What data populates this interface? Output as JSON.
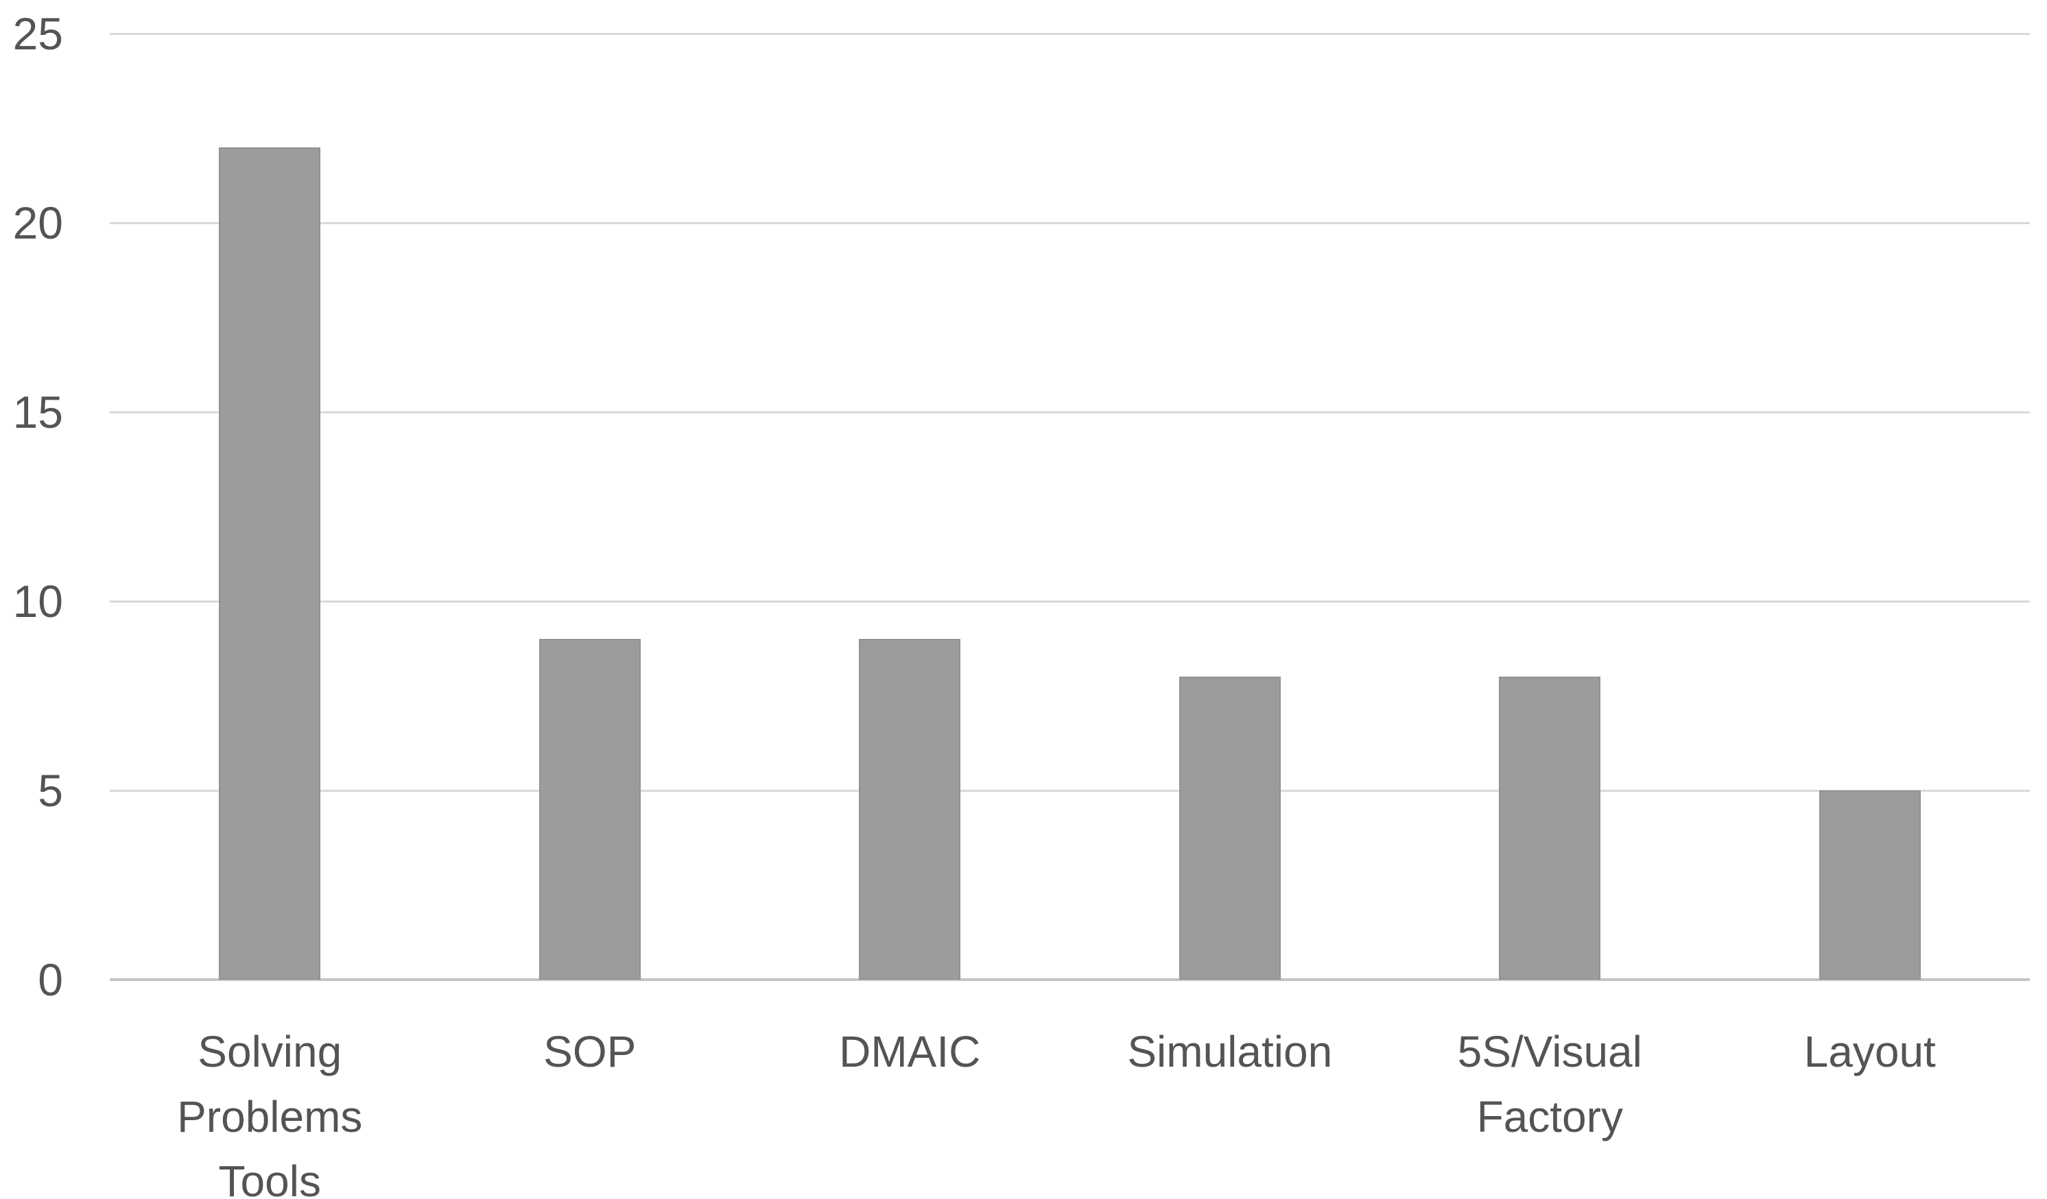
{
  "chart_data": {
    "type": "bar",
    "title": "",
    "xlabel": "",
    "ylabel": "",
    "categories": [
      "Solving Problems Tools",
      "SOP",
      "DMAIC",
      "Simulation",
      "5S/Visual Factory",
      "Layout"
    ],
    "category_label_lines": [
      [
        "Solving",
        "Problems",
        "Tools"
      ],
      [
        "SOP"
      ],
      [
        "DMAIC"
      ],
      [
        "Simulation"
      ],
      [
        "5S/Visual",
        "Factory"
      ],
      [
        "Layout"
      ]
    ],
    "values": [
      22,
      9,
      9,
      8,
      8,
      5
    ],
    "ylim": [
      0,
      25
    ],
    "yticks": [
      0,
      5,
      10,
      15,
      20,
      25
    ],
    "grid": true,
    "legend": false,
    "colors": {
      "bar": "#9c9c9c",
      "gridline": "#d9d9d9",
      "axis_line": "#c4c4c4",
      "text": "#545454",
      "background": "#ffffff"
    }
  }
}
